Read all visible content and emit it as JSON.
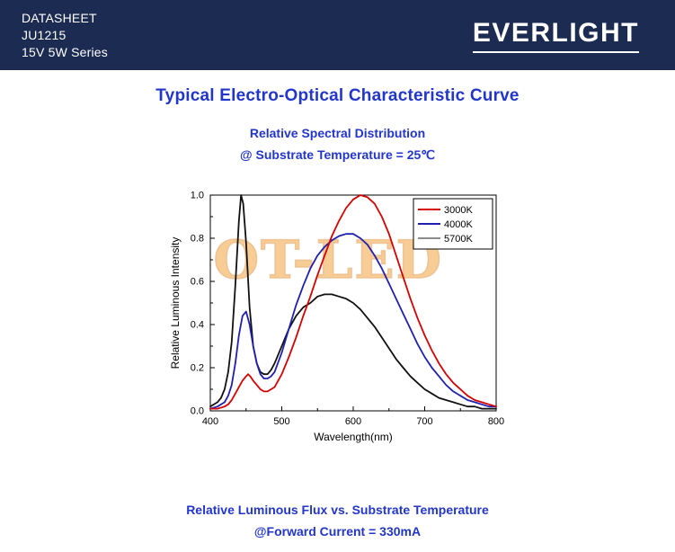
{
  "header": {
    "bg_color": "#1c2b52",
    "line1": "DATASHEET",
    "line2": "JU1215",
    "line3": "15V 5W Series",
    "brand": "EVERLIGHT"
  },
  "titles": {
    "accent_color": "#2236c9",
    "main": "Typical Electro-Optical Characteristic Curve",
    "section1": "Relative Spectral Distribution",
    "section1_sub": "@ Substrate Temperature = 25℃",
    "section2": "Relative Luminous Flux vs. Substrate Temperature",
    "section2_sub": "@Forward Current = 330mA"
  },
  "watermark": {
    "text": "OT-LED",
    "color": "#f39d2e"
  },
  "chart_data": {
    "type": "line",
    "title": "",
    "xlabel": "Wavelength(nm)",
    "ylabel": "Relative Luminous Intensity",
    "xlim": [
      400,
      800
    ],
    "ylim": [
      0.0,
      1.0
    ],
    "grid": false,
    "legend_position": "top-right",
    "x_ticks": [
      400,
      500,
      600,
      700,
      800
    ],
    "x_tick_labels": [
      "400",
      "500",
      "600",
      "700",
      "800"
    ],
    "x_minor_ticks": [
      450,
      550,
      650,
      750
    ],
    "y_ticks": [
      0.0,
      0.2,
      0.4,
      0.6,
      0.8,
      1.0
    ],
    "y_tick_labels": [
      "0.0",
      "0.2",
      "0.4",
      "0.6",
      "0.8",
      "1.0"
    ],
    "y_minor_ticks": [
      0.1,
      0.3,
      0.5,
      0.7,
      0.9
    ],
    "series": [
      {
        "name": "3000K",
        "color": "#d40000",
        "x": [
          400,
          410,
          420,
          425,
          430,
          435,
          440,
          445,
          450,
          453,
          456,
          460,
          465,
          470,
          475,
          480,
          485,
          490,
          500,
          510,
          520,
          530,
          540,
          550,
          560,
          570,
          580,
          590,
          600,
          610,
          620,
          630,
          640,
          650,
          660,
          670,
          680,
          690,
          700,
          710,
          720,
          730,
          740,
          750,
          760,
          770,
          780,
          790,
          800
        ],
        "y": [
          0.01,
          0.01,
          0.02,
          0.03,
          0.05,
          0.08,
          0.11,
          0.14,
          0.16,
          0.17,
          0.16,
          0.14,
          0.12,
          0.1,
          0.09,
          0.09,
          0.1,
          0.11,
          0.17,
          0.25,
          0.34,
          0.44,
          0.53,
          0.63,
          0.72,
          0.81,
          0.88,
          0.94,
          0.98,
          1.0,
          0.99,
          0.96,
          0.9,
          0.82,
          0.72,
          0.62,
          0.52,
          0.43,
          0.35,
          0.28,
          0.22,
          0.17,
          0.13,
          0.1,
          0.07,
          0.05,
          0.04,
          0.03,
          0.02
        ]
      },
      {
        "name": "4000K",
        "color": "#2020b0",
        "x": [
          400,
          410,
          420,
          425,
          430,
          435,
          440,
          445,
          450,
          455,
          460,
          465,
          470,
          475,
          480,
          485,
          490,
          500,
          510,
          520,
          530,
          540,
          550,
          560,
          570,
          580,
          590,
          600,
          610,
          620,
          630,
          640,
          650,
          660,
          670,
          680,
          690,
          700,
          710,
          720,
          730,
          740,
          750,
          760,
          770,
          780,
          790,
          800
        ],
        "y": [
          0.01,
          0.02,
          0.04,
          0.07,
          0.12,
          0.22,
          0.35,
          0.44,
          0.46,
          0.4,
          0.3,
          0.22,
          0.17,
          0.15,
          0.15,
          0.16,
          0.18,
          0.27,
          0.38,
          0.49,
          0.58,
          0.66,
          0.72,
          0.76,
          0.79,
          0.81,
          0.82,
          0.82,
          0.8,
          0.77,
          0.72,
          0.66,
          0.59,
          0.52,
          0.45,
          0.38,
          0.31,
          0.25,
          0.2,
          0.16,
          0.12,
          0.09,
          0.07,
          0.05,
          0.04,
          0.03,
          0.02,
          0.02
        ]
      },
      {
        "name": "5700K",
        "color": "#111111",
        "legend_color": "#8c8c8c",
        "x": [
          400,
          410,
          415,
          420,
          425,
          430,
          435,
          440,
          443,
          446,
          450,
          455,
          460,
          465,
          470,
          475,
          480,
          485,
          490,
          500,
          510,
          520,
          530,
          535,
          540,
          550,
          560,
          570,
          580,
          590,
          600,
          610,
          620,
          630,
          640,
          650,
          660,
          670,
          680,
          690,
          700,
          710,
          720,
          730,
          740,
          750,
          760,
          770,
          780,
          790,
          800
        ],
        "y": [
          0.02,
          0.04,
          0.06,
          0.1,
          0.18,
          0.32,
          0.58,
          0.88,
          1.0,
          0.96,
          0.78,
          0.48,
          0.3,
          0.22,
          0.18,
          0.17,
          0.17,
          0.19,
          0.22,
          0.3,
          0.38,
          0.44,
          0.48,
          0.49,
          0.5,
          0.53,
          0.54,
          0.54,
          0.53,
          0.52,
          0.5,
          0.47,
          0.43,
          0.39,
          0.34,
          0.29,
          0.24,
          0.2,
          0.16,
          0.13,
          0.1,
          0.08,
          0.06,
          0.05,
          0.04,
          0.03,
          0.02,
          0.02,
          0.01,
          0.01,
          0.01
        ]
      }
    ]
  }
}
